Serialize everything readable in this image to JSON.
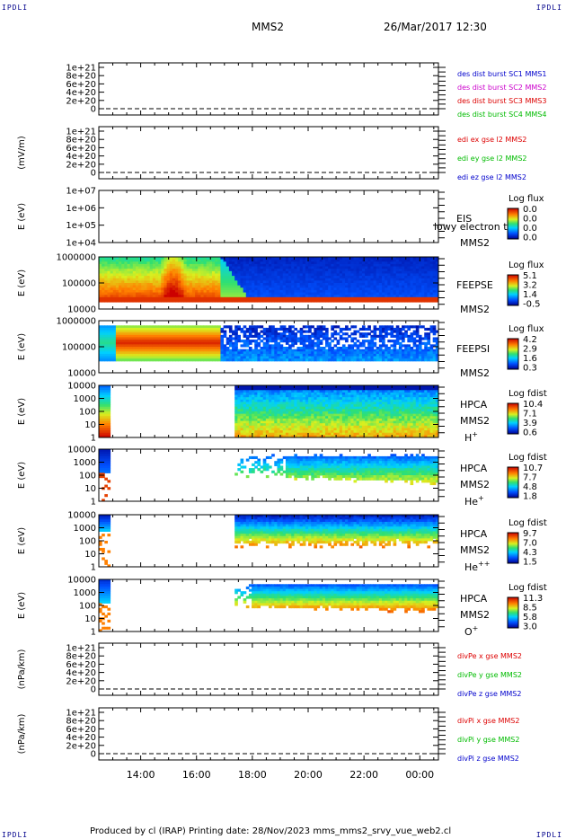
{
  "header": {
    "corner_tl": "IPDLI",
    "corner_tr": "IPDLI",
    "spacecraft": "MMS2",
    "datetime": "26/Mar/2017 12:30"
  },
  "footer": {
    "corner_bl": "IPDLI",
    "corner_br": "IPDLI",
    "text": "Produced by cl (IRAP)   Printing date: 28/Nov/2023   mms_mms2_srvy_vue_web2.cl"
  },
  "chart_data": {
    "type": "heatmap",
    "x_ticks": [
      "14:00",
      "16:00",
      "18:00",
      "20:00",
      "22:00",
      "00:00"
    ],
    "panels": [
      {
        "id": "des",
        "kind": "line",
        "ylabel": "",
        "yticks": [
          "1e+21",
          "8e+20",
          "6e+20",
          "4e+20",
          "2e+20",
          "0"
        ],
        "legend": [
          {
            "text": "des dist burst SC1 MMS1",
            "color": "#0000cc"
          },
          {
            "text": "des dist burst SC2 MMS2",
            "color": "#cc00cc"
          },
          {
            "text": "des dist burst SC3 MMS3",
            "color": "#dd0000"
          },
          {
            "text": "des dist burst SC4 MMS4",
            "color": "#00bb00"
          }
        ]
      },
      {
        "id": "edi",
        "kind": "line",
        "ylabel": "(mV/m)",
        "yticks": [
          "1e+21",
          "8e+20",
          "6e+20",
          "4e+20",
          "2e+20",
          "0"
        ],
        "legend": [
          {
            "text": "edi ex gse l2 MMS2",
            "color": "#dd0000"
          },
          {
            "text": "edi ey gse l2 MMS2",
            "color": "#00bb00"
          },
          {
            "text": "edi ez gse l2 MMS2",
            "color": "#0000cc"
          }
        ]
      },
      {
        "id": "eis",
        "kind": "spectrogram",
        "ylabel": "E (eV)",
        "yticks": [
          "1e+07",
          "1e+06",
          "1e+05",
          "1e+04"
        ],
        "label1": "EIS",
        "label2": "MMS2",
        "overlay": "lowy electron to",
        "cbar_title": "Log flux",
        "cbar_ticks": [
          "0.0",
          "0.0",
          "0.0",
          "0.0"
        ],
        "fill": "none"
      },
      {
        "id": "feepse",
        "kind": "spectrogram",
        "ylabel": "E (eV)",
        "yticks": [
          "1000000",
          "100000",
          "10000"
        ],
        "label1": "FEEPSE",
        "label2": "MMS2",
        "overlay": "",
        "cbar_title": "Log flux",
        "cbar_ticks": [
          "5.1",
          "3.2",
          "1.4",
          "-0.5"
        ],
        "fill": "feepse"
      },
      {
        "id": "feepsi",
        "kind": "spectrogram",
        "ylabel": "E (eV)",
        "yticks": [
          "1000000",
          "100000",
          "10000"
        ],
        "label1": "FEEPSI",
        "label2": "MMS2",
        "overlay": "",
        "cbar_title": "Log flux",
        "cbar_ticks": [
          "4.2",
          "2.9",
          "1.6",
          "0.3"
        ],
        "fill": "feepsi"
      },
      {
        "id": "hpca_h",
        "kind": "spectrogram",
        "ylabel": "E (eV)",
        "yticks": [
          "10000",
          "1000",
          "100",
          "10",
          "1"
        ],
        "label1": "HPCA",
        "label2": "MMS2",
        "species": "H",
        "species_sup": "+",
        "overlay": "",
        "cbar_title": "Log fdist",
        "cbar_ticks": [
          "10.4",
          "7.1",
          "3.9",
          "0.6"
        ],
        "fill": "hpca_h"
      },
      {
        "id": "hpca_he",
        "kind": "spectrogram",
        "ylabel": "E (eV)",
        "yticks": [
          "10000",
          "1000",
          "100",
          "10",
          "1"
        ],
        "label1": "HPCA",
        "label2": "MMS2",
        "species": "He",
        "species_sup": "+",
        "overlay": "",
        "cbar_title": "Log fdist",
        "cbar_ticks": [
          "10.7",
          "7.7",
          "4.8",
          "1.8"
        ],
        "fill": "hpca_he"
      },
      {
        "id": "hpca_hepp",
        "kind": "spectrogram",
        "ylabel": "E (eV)",
        "yticks": [
          "10000",
          "1000",
          "100",
          "10",
          "1"
        ],
        "label1": "HPCA",
        "label2": "MMS2",
        "species": "He",
        "species_sup": "++",
        "overlay": "",
        "cbar_title": "Log fdist",
        "cbar_ticks": [
          "9.7",
          "7.0",
          "4.3",
          "1.5"
        ],
        "fill": "hpca_hepp"
      },
      {
        "id": "hpca_o",
        "kind": "spectrogram",
        "ylabel": "E (eV)",
        "yticks": [
          "10000",
          "1000",
          "100",
          "10",
          "1"
        ],
        "label1": "HPCA",
        "label2": "MMS2",
        "species": "O",
        "species_sup": "+",
        "overlay": "",
        "cbar_title": "Log fdist",
        "cbar_ticks": [
          "11.3",
          "8.5",
          "5.8",
          "3.0"
        ],
        "fill": "hpca_o"
      },
      {
        "id": "divpe",
        "kind": "line",
        "ylabel": "(nPa/km)",
        "yticks": [
          "1e+21",
          "8e+20",
          "6e+20",
          "4e+20",
          "2e+20",
          "0"
        ],
        "legend": [
          {
            "text": "divPe x gse MMS2",
            "color": "#dd0000"
          },
          {
            "text": "divPe y gse MMS2",
            "color": "#00bb00"
          },
          {
            "text": "divPe z gse MMS2",
            "color": "#0000cc"
          }
        ]
      },
      {
        "id": "divpi",
        "kind": "line",
        "ylabel": "(nPa/km)",
        "yticks": [
          "1e+21",
          "8e+20",
          "6e+20",
          "4e+20",
          "2e+20",
          "0"
        ],
        "legend": [
          {
            "text": "divPi x gse MMS2",
            "color": "#dd0000"
          },
          {
            "text": "divPi y gse MMS2",
            "color": "#00bb00"
          },
          {
            "text": "divPi z gse MMS2",
            "color": "#0000cc"
          }
        ]
      }
    ]
  }
}
